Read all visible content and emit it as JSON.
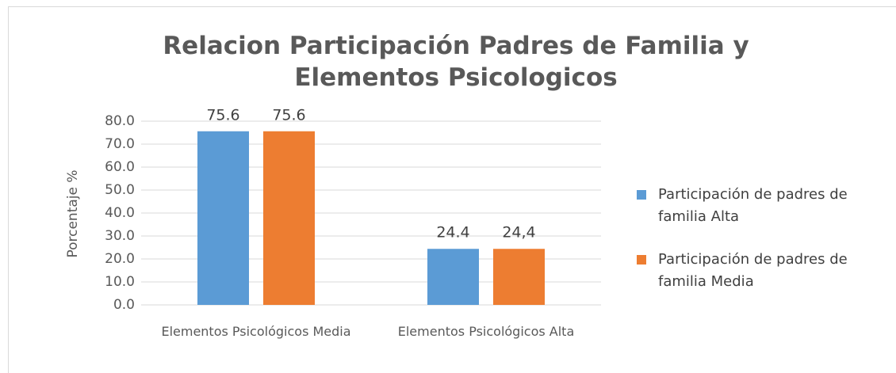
{
  "chart_data": {
    "type": "bar",
    "title": "Relacion  Participación Padres de Familia y Elementos Psicologicos",
    "ylabel": "Porcentaje %",
    "categories": [
      "Elementos Psicológicos Media",
      "Elementos Psicológicos Alta"
    ],
    "series": [
      {
        "name": "Participación de padres de familia Alta",
        "color": "#5b9bd5",
        "values": [
          75.6,
          24.4
        ]
      },
      {
        "name": "Participación de padres de familia Media",
        "color": "#ed7d31",
        "values": [
          75.6,
          24.4
        ],
        "value_labels": [
          "75.6",
          "24,4"
        ]
      }
    ],
    "ylim": [
      0,
      80
    ],
    "yticks": [
      {
        "value": 0,
        "label": "0.0"
      },
      {
        "value": 10,
        "label": "10.0"
      },
      {
        "value": 20,
        "label": "20.0"
      },
      {
        "value": 30,
        "label": "30.0"
      },
      {
        "value": 40,
        "label": "40.0"
      },
      {
        "value": 50,
        "label": "50.0"
      },
      {
        "value": 60,
        "label": "60.0"
      },
      {
        "value": 70,
        "label": "70.0"
      },
      {
        "value": 80,
        "label": "80.0"
      }
    ],
    "grid": true,
    "legend": "right"
  }
}
